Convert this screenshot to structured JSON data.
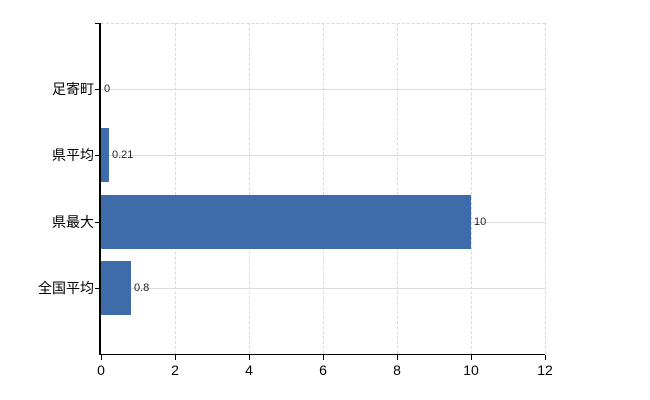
{
  "chart_data": {
    "type": "bar",
    "orientation": "horizontal",
    "title": "",
    "xlabel": "",
    "ylabel": "",
    "categories": [
      "足寄町",
      "県平均",
      "県最大",
      "全国平均"
    ],
    "values": [
      0,
      0.21,
      10,
      0.8
    ],
    "value_labels": [
      "0",
      "0.21",
      "10",
      "0.8"
    ],
    "xlim": [
      0,
      12
    ],
    "x_ticks": [
      0,
      2,
      4,
      6,
      8,
      10,
      12
    ],
    "x_tick_labels": [
      "0",
      "2",
      "4",
      "6",
      "8",
      "10",
      "12"
    ],
    "grid": true,
    "legend": false,
    "colors": {
      "bar": "#3e6cab",
      "axis": "#000000",
      "gridline_vertical": "#d9d9d9",
      "gridline_horizontal": "#dcdcdc",
      "text": "#000000",
      "value_text": "#222222",
      "background": "#ffffff"
    }
  }
}
